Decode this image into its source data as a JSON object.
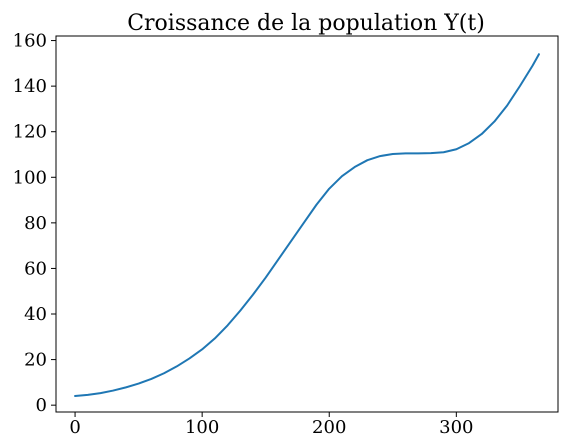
{
  "chart_data": {
    "type": "line",
    "title": "Croissance de la population Y(t)",
    "xlabel": "",
    "ylabel": "",
    "xlim": [
      -15,
      380
    ],
    "ylim": [
      -3,
      162
    ],
    "x_ticks": [
      0,
      100,
      200,
      300
    ],
    "y_ticks": [
      0,
      20,
      40,
      60,
      80,
      100,
      120,
      140,
      160
    ],
    "grid": false,
    "legend": "none",
    "series": [
      {
        "color": "#1f77b4",
        "x": [
          0,
          10,
          20,
          30,
          40,
          50,
          60,
          70,
          80,
          90,
          100,
          110,
          120,
          130,
          140,
          150,
          160,
          170,
          180,
          190,
          200,
          210,
          220,
          230,
          240,
          250,
          260,
          270,
          280,
          290,
          300,
          310,
          320,
          330,
          340,
          350,
          360,
          365
        ],
        "values": [
          4,
          4.5,
          5.3,
          6.4,
          7.8,
          9.5,
          11.5,
          14,
          17,
          20.5,
          24.5,
          29.3,
          35,
          41.5,
          48.5,
          56,
          64,
          72,
          80,
          88,
          95,
          100.5,
          104.5,
          107.5,
          109.3,
          110.2,
          110.5,
          110.5,
          110.6,
          111,
          112.3,
          115,
          119,
          124.5,
          131.5,
          140,
          149,
          154
        ]
      }
    ]
  }
}
